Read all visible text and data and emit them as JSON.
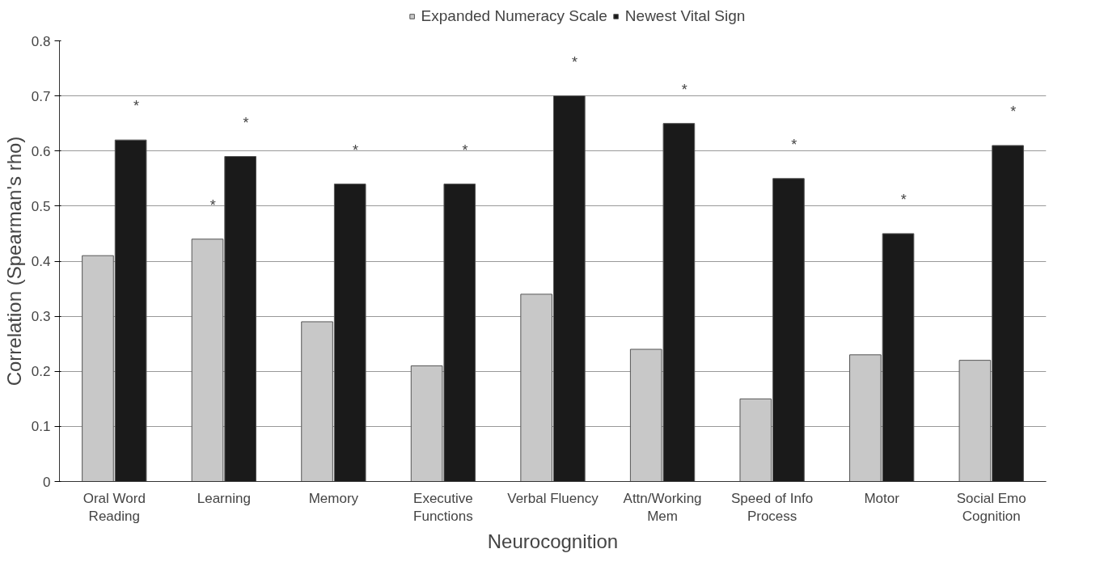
{
  "chart_data": {
    "type": "bar",
    "xlabel": "Neurocognition",
    "ylabel": "Correlation (Spearman's rho)",
    "categories": [
      "Oral Word\nReading",
      "Learning",
      "Memory",
      "Executive\nFunctions",
      "Verbal Fluency",
      "Attn/Working\nMem",
      "Speed of Info\nProcess",
      "Motor",
      "Social Emo\nCognition"
    ],
    "series": [
      {
        "name": "Expanded Numeracy Scale",
        "color": "#c8c8c8",
        "values": [
          0.41,
          0.44,
          0.29,
          0.21,
          0.34,
          0.24,
          0.15,
          0.23,
          0.22
        ]
      },
      {
        "name": "Newest Vital Sign",
        "color": "#1a1a1a",
        "values": [
          0.62,
          0.59,
          0.54,
          0.54,
          0.7,
          0.65,
          0.55,
          0.45,
          0.61
        ]
      }
    ],
    "ylim": [
      0,
      0.8
    ],
    "yticks": [
      0,
      0.1,
      0.2,
      0.3,
      0.4,
      0.5,
      0.6,
      0.7,
      0.8
    ],
    "grid": "y",
    "legend": "top",
    "annotations": [
      {
        "text": "*",
        "x": "Oral Word\nReading",
        "y": 0.62
      },
      {
        "text": "*",
        "x": "Learning",
        "y": 0.44
      },
      {
        "text": "*",
        "x": "Learning",
        "y": 0.59
      },
      {
        "text": "*",
        "x": "Memory",
        "y": 0.54
      },
      {
        "text": "*",
        "x": "Executive\nFunctions",
        "y": 0.54
      },
      {
        "text": "*",
        "x": "Verbal Fluency",
        "y": 0.7
      },
      {
        "text": "*",
        "x": "Attn/Working\nMem",
        "y": 0.65
      },
      {
        "text": "*",
        "x": "Speed of Info\nProcess",
        "y": 0.55
      },
      {
        "text": "*",
        "x": "Motor",
        "y": 0.45
      },
      {
        "text": "*",
        "x": "Social Emo\nCognition",
        "y": 0.61
      }
    ]
  }
}
